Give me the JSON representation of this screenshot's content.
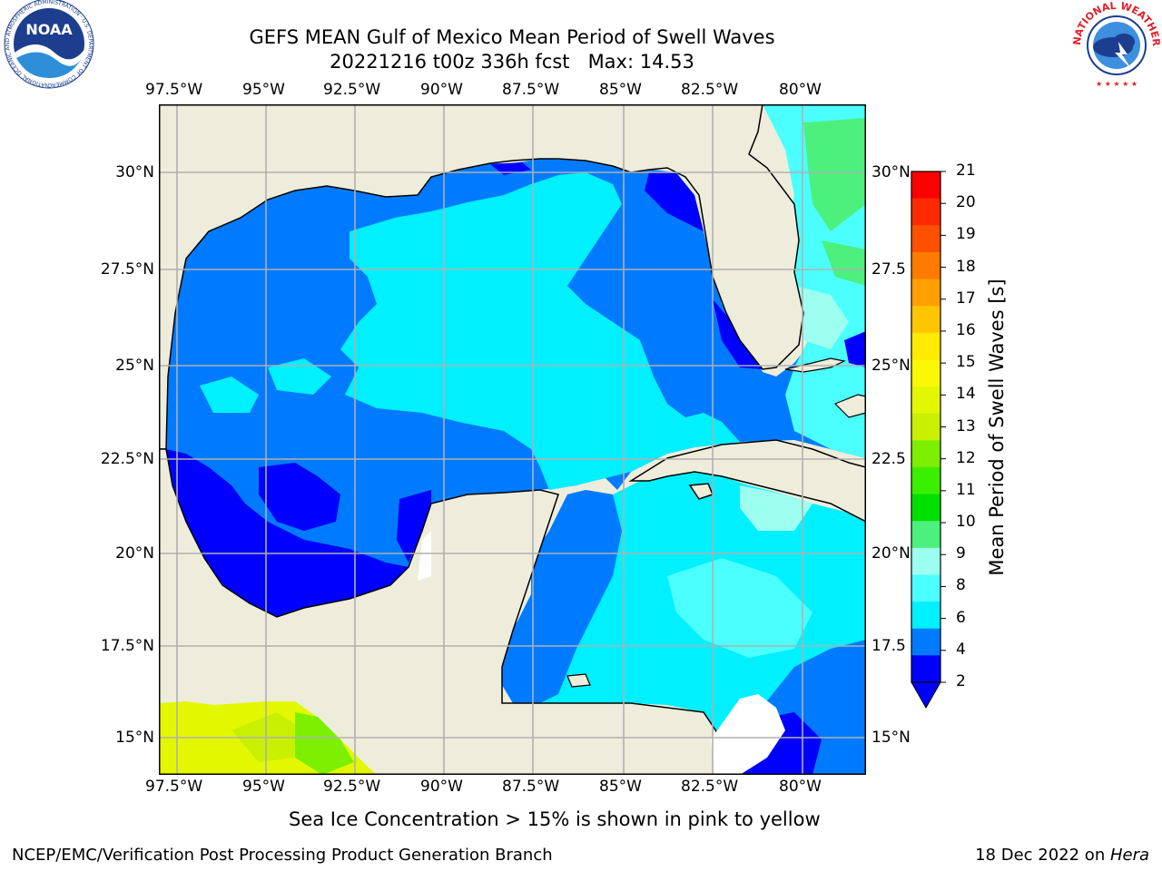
{
  "header": {
    "title_line1": "GEFS MEAN Gulf of Mexico Mean Period of Swell Waves",
    "title_line2": "20221216 t00z 336h fcst   Max: 14.53"
  },
  "map": {
    "lon_ticks": [
      "97.5°W",
      "95°W",
      "92.5°W",
      "90°W",
      "87.5°W",
      "85°W",
      "82.5°W",
      "80°W"
    ],
    "lat_ticks_left": [
      "30°N",
      "27.5°N",
      "25°N",
      "22.5°N",
      "20°N",
      "17.5°N",
      "15°N"
    ],
    "lat_ticks_right": [
      "30°N",
      "27.5",
      "25°N",
      "22.5",
      "20°N",
      "17.5",
      "15°N"
    ],
    "lon_range": [
      -98,
      -78.3
    ],
    "lat_range": [
      14,
      31.7
    ]
  },
  "colorbar": {
    "label": "Mean Period of Swell Waves [s]",
    "ticks": [
      "21",
      "20",
      "19",
      "18",
      "17",
      "16",
      "15",
      "14",
      "13",
      "12",
      "11",
      "10",
      "9",
      "8",
      "6",
      "4",
      "2"
    ],
    "colors": [
      "#ff0000",
      "#ff2a00",
      "#ff5000",
      "#ff7b00",
      "#ffa000",
      "#ffc500",
      "#ffea00",
      "#f8f800",
      "#e3f800",
      "#c8f000",
      "#7cf000",
      "#3af000",
      "#00e000",
      "#4cf07c",
      "#9cfff0",
      "#4cffff",
      "#00f0ff",
      "#007bff",
      "#0000ff"
    ]
  },
  "logos": {
    "noaa_text": "NOAA",
    "noaa_ring": "NATIONAL OCEANIC AND ATMOSPHERIC ADMINISTRATION · U.S. DEPARTMENT OF COMMERCE",
    "nws_ring": "NATIONAL WEATHER SERVICE"
  },
  "footer": {
    "caption": "Sea Ice Concentration > 15% is shown in pink to yellow",
    "left": "NCEP/EMC/Verification Post Processing Product Generation Branch",
    "right_prefix": "18 Dec 2022 on ",
    "right_host": "Hera"
  }
}
